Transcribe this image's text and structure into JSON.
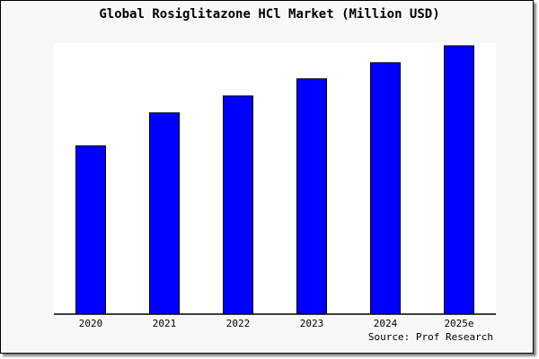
{
  "chart_data": {
    "type": "bar",
    "title": "Global Rosiglitazone HCl Market (Million USD)",
    "categories": [
      "2020",
      "2021",
      "2022",
      "2023",
      "2024",
      "2025e"
    ],
    "values": [
      62.7,
      75.0,
      81.3,
      87.7,
      93.7,
      100
    ],
    "ylim": [
      0,
      101
    ],
    "xlabel": "",
    "ylabel": "",
    "grid": false,
    "bar_color": "#0000ff",
    "source": "Source: Prof Research"
  }
}
